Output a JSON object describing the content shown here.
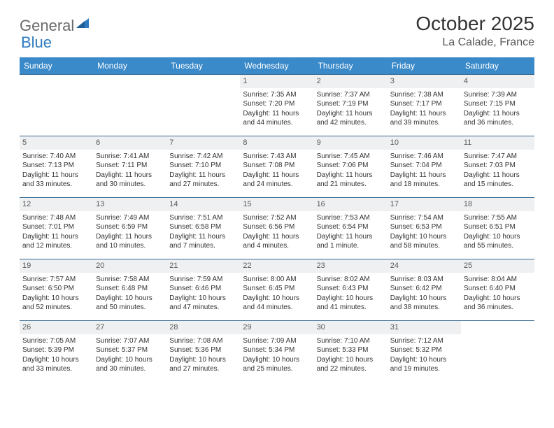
{
  "logo": {
    "text_gray": "General",
    "text_blue": "Blue",
    "icon_color": "#2f7bbf"
  },
  "title": "October 2025",
  "location": "La Calade, France",
  "colors": {
    "header_bg": "#3a89c9",
    "header_text": "#ffffff",
    "row_border": "#3a6a92",
    "daynum_bg": "#eef0f1",
    "text": "#333333"
  },
  "weekdays": [
    "Sunday",
    "Monday",
    "Tuesday",
    "Wednesday",
    "Thursday",
    "Friday",
    "Saturday"
  ],
  "weeks": [
    [
      {
        "day": "",
        "empty": true
      },
      {
        "day": "",
        "empty": true
      },
      {
        "day": "",
        "empty": true
      },
      {
        "day": "1",
        "sunrise": "Sunrise: 7:35 AM",
        "sunset": "Sunset: 7:20 PM",
        "dl1": "Daylight: 11 hours",
        "dl2": "and 44 minutes."
      },
      {
        "day": "2",
        "sunrise": "Sunrise: 7:37 AM",
        "sunset": "Sunset: 7:19 PM",
        "dl1": "Daylight: 11 hours",
        "dl2": "and 42 minutes."
      },
      {
        "day": "3",
        "sunrise": "Sunrise: 7:38 AM",
        "sunset": "Sunset: 7:17 PM",
        "dl1": "Daylight: 11 hours",
        "dl2": "and 39 minutes."
      },
      {
        "day": "4",
        "sunrise": "Sunrise: 7:39 AM",
        "sunset": "Sunset: 7:15 PM",
        "dl1": "Daylight: 11 hours",
        "dl2": "and 36 minutes."
      }
    ],
    [
      {
        "day": "5",
        "sunrise": "Sunrise: 7:40 AM",
        "sunset": "Sunset: 7:13 PM",
        "dl1": "Daylight: 11 hours",
        "dl2": "and 33 minutes."
      },
      {
        "day": "6",
        "sunrise": "Sunrise: 7:41 AM",
        "sunset": "Sunset: 7:11 PM",
        "dl1": "Daylight: 11 hours",
        "dl2": "and 30 minutes."
      },
      {
        "day": "7",
        "sunrise": "Sunrise: 7:42 AM",
        "sunset": "Sunset: 7:10 PM",
        "dl1": "Daylight: 11 hours",
        "dl2": "and 27 minutes."
      },
      {
        "day": "8",
        "sunrise": "Sunrise: 7:43 AM",
        "sunset": "Sunset: 7:08 PM",
        "dl1": "Daylight: 11 hours",
        "dl2": "and 24 minutes."
      },
      {
        "day": "9",
        "sunrise": "Sunrise: 7:45 AM",
        "sunset": "Sunset: 7:06 PM",
        "dl1": "Daylight: 11 hours",
        "dl2": "and 21 minutes."
      },
      {
        "day": "10",
        "sunrise": "Sunrise: 7:46 AM",
        "sunset": "Sunset: 7:04 PM",
        "dl1": "Daylight: 11 hours",
        "dl2": "and 18 minutes."
      },
      {
        "day": "11",
        "sunrise": "Sunrise: 7:47 AM",
        "sunset": "Sunset: 7:03 PM",
        "dl1": "Daylight: 11 hours",
        "dl2": "and 15 minutes."
      }
    ],
    [
      {
        "day": "12",
        "sunrise": "Sunrise: 7:48 AM",
        "sunset": "Sunset: 7:01 PM",
        "dl1": "Daylight: 11 hours",
        "dl2": "and 12 minutes."
      },
      {
        "day": "13",
        "sunrise": "Sunrise: 7:49 AM",
        "sunset": "Sunset: 6:59 PM",
        "dl1": "Daylight: 11 hours",
        "dl2": "and 10 minutes."
      },
      {
        "day": "14",
        "sunrise": "Sunrise: 7:51 AM",
        "sunset": "Sunset: 6:58 PM",
        "dl1": "Daylight: 11 hours",
        "dl2": "and 7 minutes."
      },
      {
        "day": "15",
        "sunrise": "Sunrise: 7:52 AM",
        "sunset": "Sunset: 6:56 PM",
        "dl1": "Daylight: 11 hours",
        "dl2": "and 4 minutes."
      },
      {
        "day": "16",
        "sunrise": "Sunrise: 7:53 AM",
        "sunset": "Sunset: 6:54 PM",
        "dl1": "Daylight: 11 hours",
        "dl2": "and 1 minute."
      },
      {
        "day": "17",
        "sunrise": "Sunrise: 7:54 AM",
        "sunset": "Sunset: 6:53 PM",
        "dl1": "Daylight: 10 hours",
        "dl2": "and 58 minutes."
      },
      {
        "day": "18",
        "sunrise": "Sunrise: 7:55 AM",
        "sunset": "Sunset: 6:51 PM",
        "dl1": "Daylight: 10 hours",
        "dl2": "and 55 minutes."
      }
    ],
    [
      {
        "day": "19",
        "sunrise": "Sunrise: 7:57 AM",
        "sunset": "Sunset: 6:50 PM",
        "dl1": "Daylight: 10 hours",
        "dl2": "and 52 minutes."
      },
      {
        "day": "20",
        "sunrise": "Sunrise: 7:58 AM",
        "sunset": "Sunset: 6:48 PM",
        "dl1": "Daylight: 10 hours",
        "dl2": "and 50 minutes."
      },
      {
        "day": "21",
        "sunrise": "Sunrise: 7:59 AM",
        "sunset": "Sunset: 6:46 PM",
        "dl1": "Daylight: 10 hours",
        "dl2": "and 47 minutes."
      },
      {
        "day": "22",
        "sunrise": "Sunrise: 8:00 AM",
        "sunset": "Sunset: 6:45 PM",
        "dl1": "Daylight: 10 hours",
        "dl2": "and 44 minutes."
      },
      {
        "day": "23",
        "sunrise": "Sunrise: 8:02 AM",
        "sunset": "Sunset: 6:43 PM",
        "dl1": "Daylight: 10 hours",
        "dl2": "and 41 minutes."
      },
      {
        "day": "24",
        "sunrise": "Sunrise: 8:03 AM",
        "sunset": "Sunset: 6:42 PM",
        "dl1": "Daylight: 10 hours",
        "dl2": "and 38 minutes."
      },
      {
        "day": "25",
        "sunrise": "Sunrise: 8:04 AM",
        "sunset": "Sunset: 6:40 PM",
        "dl1": "Daylight: 10 hours",
        "dl2": "and 36 minutes."
      }
    ],
    [
      {
        "day": "26",
        "sunrise": "Sunrise: 7:05 AM",
        "sunset": "Sunset: 5:39 PM",
        "dl1": "Daylight: 10 hours",
        "dl2": "and 33 minutes."
      },
      {
        "day": "27",
        "sunrise": "Sunrise: 7:07 AM",
        "sunset": "Sunset: 5:37 PM",
        "dl1": "Daylight: 10 hours",
        "dl2": "and 30 minutes."
      },
      {
        "day": "28",
        "sunrise": "Sunrise: 7:08 AM",
        "sunset": "Sunset: 5:36 PM",
        "dl1": "Daylight: 10 hours",
        "dl2": "and 27 minutes."
      },
      {
        "day": "29",
        "sunrise": "Sunrise: 7:09 AM",
        "sunset": "Sunset: 5:34 PM",
        "dl1": "Daylight: 10 hours",
        "dl2": "and 25 minutes."
      },
      {
        "day": "30",
        "sunrise": "Sunrise: 7:10 AM",
        "sunset": "Sunset: 5:33 PM",
        "dl1": "Daylight: 10 hours",
        "dl2": "and 22 minutes."
      },
      {
        "day": "31",
        "sunrise": "Sunrise: 7:12 AM",
        "sunset": "Sunset: 5:32 PM",
        "dl1": "Daylight: 10 hours",
        "dl2": "and 19 minutes."
      },
      {
        "day": "",
        "empty": true
      }
    ]
  ]
}
